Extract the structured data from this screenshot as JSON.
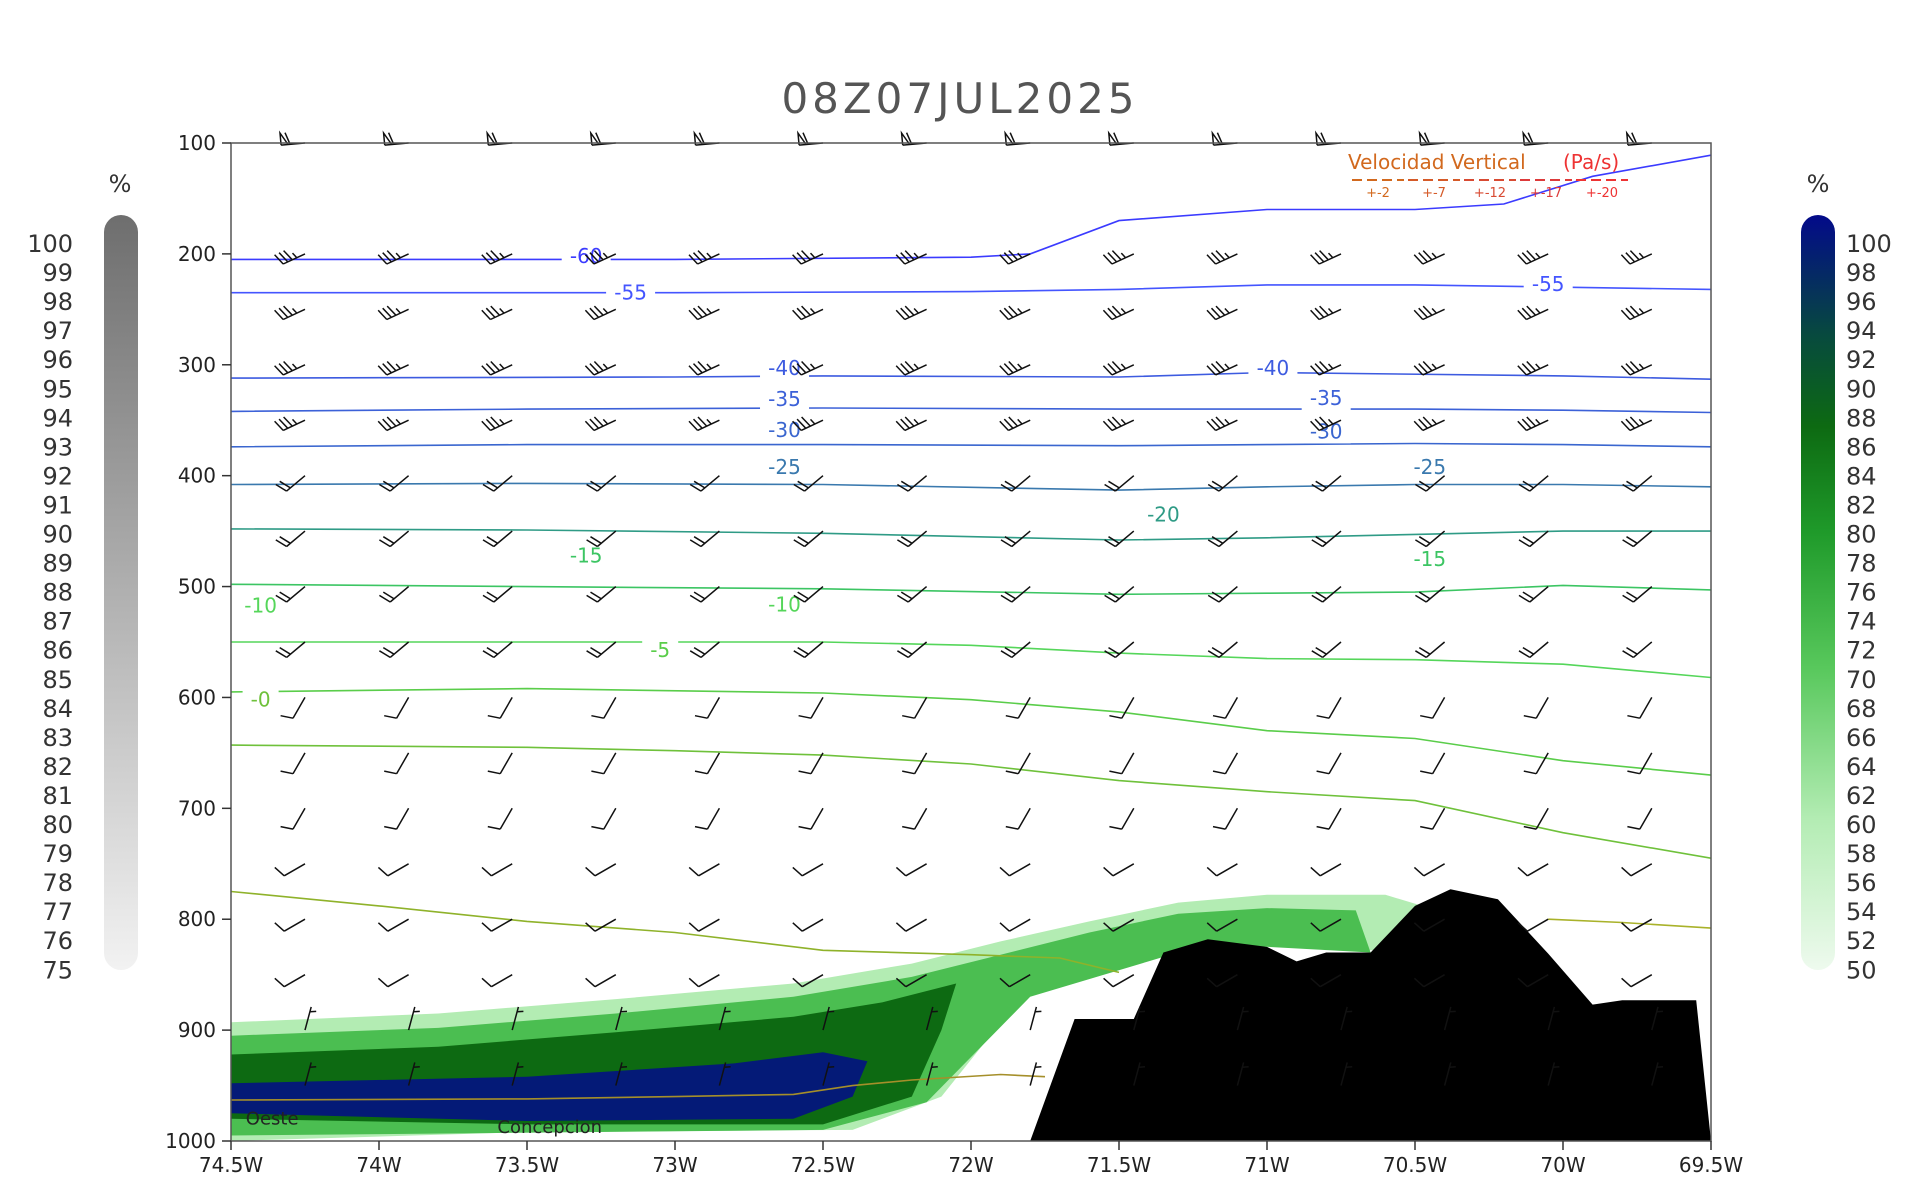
{
  "chart_data": {
    "type": "line",
    "title": "08Z07JUL2025",
    "y_axis": {
      "range": [
        1000,
        100
      ],
      "ticks": [
        100,
        200,
        300,
        400,
        500,
        600,
        700,
        800,
        900,
        1000
      ]
    },
    "x_axis": {
      "range": [
        -74.5,
        -69.5
      ],
      "ticks": [
        {
          "v": -74.5,
          "l": "74.5W"
        },
        {
          "v": -74,
          "l": "74W"
        },
        {
          "v": -73.5,
          "l": "73.5W"
        },
        {
          "v": -73,
          "l": "73W"
        },
        {
          "v": -72.5,
          "l": "72.5W"
        },
        {
          "v": -72,
          "l": "72W"
        },
        {
          "v": -71.5,
          "l": "71.5W"
        },
        {
          "v": -71,
          "l": "71W"
        },
        {
          "v": -70.5,
          "l": "70.5W"
        },
        {
          "v": -70,
          "l": "70W"
        },
        {
          "v": -69.5,
          "l": "69.5W"
        }
      ]
    },
    "temperature_isotherms": [
      {
        "label": "-60",
        "color": "#3b3bff",
        "labels_at": [
          [
            -73.3,
            202
          ]
        ],
        "points": [
          [
            -74.5,
            205
          ],
          [
            -73,
            205
          ],
          [
            -72,
            203
          ],
          [
            -71.8,
            200
          ],
          [
            -71.5,
            170
          ],
          [
            -71,
            160
          ],
          [
            -70.5,
            160
          ],
          [
            -70.2,
            155
          ],
          [
            -69.9,
            130
          ],
          [
            -69.5,
            111
          ]
        ]
      },
      {
        "label": "-55",
        "color": "#4455ff",
        "labels_at": [
          [
            -73.15,
            235
          ],
          [
            -70.05,
            227
          ]
        ],
        "points": [
          [
            -74.5,
            235
          ],
          [
            -73,
            235
          ],
          [
            -72,
            234
          ],
          [
            -71.5,
            232
          ],
          [
            -71,
            228
          ],
          [
            -70.5,
            228
          ],
          [
            -70,
            230
          ],
          [
            -69.5,
            232
          ]
        ]
      },
      {
        "label": "-40",
        "color": "#3d5be0",
        "labels_at": [
          [
            -72.63,
            303
          ],
          [
            -70.98,
            303
          ]
        ],
        "points": [
          [
            -74.5,
            312
          ],
          [
            -73,
            311
          ],
          [
            -72.5,
            310
          ],
          [
            -71.5,
            311
          ],
          [
            -71,
            307
          ],
          [
            -70,
            310
          ],
          [
            -69.5,
            313
          ]
        ]
      },
      {
        "label": "-35",
        "color": "#3c61d8",
        "labels_at": [
          [
            -72.63,
            331
          ],
          [
            -70.8,
            330
          ]
        ],
        "points": [
          [
            -74.5,
            342
          ],
          [
            -73.5,
            340
          ],
          [
            -72.5,
            339
          ],
          [
            -71.5,
            340
          ],
          [
            -71,
            340
          ],
          [
            -70.5,
            340
          ],
          [
            -70,
            341
          ],
          [
            -69.5,
            343
          ]
        ]
      },
      {
        "label": "-30",
        "color": "#3a66cf",
        "labels_at": [
          [
            -72.63,
            359
          ],
          [
            -70.8,
            360
          ]
        ],
        "points": [
          [
            -74.5,
            374
          ],
          [
            -73.5,
            372
          ],
          [
            -72.5,
            372
          ],
          [
            -71.5,
            373
          ],
          [
            -71,
            372
          ],
          [
            -70.5,
            371
          ],
          [
            -70,
            372
          ],
          [
            -69.5,
            374
          ]
        ]
      },
      {
        "label": "-25",
        "color": "#3a79ae",
        "labels_at": [
          [
            -72.63,
            392
          ],
          [
            -70.45,
            392
          ]
        ],
        "points": [
          [
            -74.5,
            408
          ],
          [
            -73.5,
            407
          ],
          [
            -72.5,
            408
          ],
          [
            -71.5,
            413
          ],
          [
            -71,
            410
          ],
          [
            -70.5,
            408
          ],
          [
            -70,
            408
          ],
          [
            -69.5,
            410
          ]
        ]
      },
      {
        "label": "-20",
        "color": "#2f9b86",
        "labels_at": [
          [
            -71.35,
            435
          ]
        ],
        "points": [
          [
            -74.5,
            448
          ],
          [
            -73.5,
            449
          ],
          [
            -72.5,
            452
          ],
          [
            -71.5,
            458
          ],
          [
            -71,
            456
          ],
          [
            -70.5,
            453
          ],
          [
            -70,
            450
          ],
          [
            -69.5,
            450
          ]
        ]
      },
      {
        "label": "-15",
        "color": "#3cc563",
        "labels_at": [
          [
            -73.3,
            472
          ],
          [
            -70.45,
            475
          ]
        ],
        "points": [
          [
            -74.5,
            498
          ],
          [
            -73.5,
            500
          ],
          [
            -72.5,
            502
          ],
          [
            -71.5,
            507
          ],
          [
            -71,
            506
          ],
          [
            -70.5,
            505
          ],
          [
            -70,
            499
          ],
          [
            -69.5,
            503
          ]
        ]
      },
      {
        "label": "-10",
        "color": "#55d65a",
        "labels_at": [
          [
            -74.4,
            517
          ],
          [
            -72.63,
            516
          ]
        ],
        "points": [
          [
            -74.5,
            550
          ],
          [
            -73.5,
            550
          ],
          [
            -72.5,
            550
          ],
          [
            -72,
            553
          ],
          [
            -71.5,
            560
          ],
          [
            -71,
            565
          ],
          [
            -70.5,
            566
          ],
          [
            -70,
            570
          ],
          [
            -69.5,
            582
          ]
        ]
      },
      {
        "label": "-5",
        "color": "#5acd4a",
        "labels_at": [
          [
            -73.05,
            557
          ]
        ],
        "points": [
          [
            -74.5,
            595
          ],
          [
            -73.5,
            592
          ],
          [
            -72.5,
            596
          ],
          [
            -72,
            602
          ],
          [
            -71.5,
            613
          ],
          [
            -71,
            630
          ],
          [
            -70.5,
            637
          ],
          [
            -70,
            657
          ],
          [
            -69.5,
            670
          ]
        ]
      },
      {
        "label": "-0",
        "color": "#6fc13b",
        "labels_at": [
          [
            -74.4,
            602
          ]
        ],
        "points": [
          [
            -74.5,
            643
          ],
          [
            -73.5,
            645
          ],
          [
            -73,
            648
          ],
          [
            -72.5,
            652
          ],
          [
            -72,
            660
          ],
          [
            -71.5,
            675
          ],
          [
            -71,
            685
          ],
          [
            -70.5,
            693
          ],
          [
            -70,
            722
          ],
          [
            -69.5,
            745
          ]
        ]
      },
      {
        "label": "",
        "color": "#8fb22a",
        "points": [
          [
            -74.5,
            775
          ],
          [
            -74,
            788
          ],
          [
            -73.5,
            802
          ],
          [
            -73,
            812
          ],
          [
            -72.5,
            828
          ],
          [
            -72,
            832
          ],
          [
            -71.7,
            835
          ],
          [
            -71.5,
            848
          ]
        ]
      },
      {
        "label": "",
        "color": "#a9b22a",
        "points": [
          [
            -70.05,
            800
          ],
          [
            -69.8,
            803
          ],
          [
            -69.5,
            808
          ]
        ]
      },
      {
        "label": "",
        "color": "#a58f2a",
        "points": [
          [
            -74.5,
            963
          ],
          [
            -73.5,
            962
          ],
          [
            -73,
            960
          ],
          [
            -72.6,
            958
          ],
          [
            -72.4,
            950
          ],
          [
            -72.2,
            945
          ],
          [
            -71.9,
            940
          ],
          [
            -71.75,
            942
          ]
        ]
      }
    ],
    "terrain": {
      "color": "#000000",
      "points": [
        [
          -71.8,
          1000
        ],
        [
          -71.65,
          890
        ],
        [
          -71.45,
          890
        ],
        [
          -71.35,
          830
        ],
        [
          -71.2,
          818
        ],
        [
          -71,
          825
        ],
        [
          -70.9,
          838
        ],
        [
          -70.8,
          830
        ],
        [
          -70.65,
          830
        ],
        [
          -70.5,
          788
        ],
        [
          -70.38,
          773
        ],
        [
          -70.22,
          782
        ],
        [
          -70.05,
          831
        ],
        [
          -69.9,
          877
        ],
        [
          -69.8,
          873
        ],
        [
          -69.55,
          873
        ],
        [
          -69.5,
          1000
        ]
      ]
    },
    "relative_humidity": {
      "unit": "%",
      "range": [
        50,
        100
      ],
      "colorbar_ticks": [
        100,
        98,
        96,
        94,
        92,
        90,
        88,
        86,
        84,
        82,
        80,
        78,
        76,
        74,
        72,
        70,
        68,
        66,
        64,
        62,
        60,
        58,
        56,
        54,
        52,
        50
      ],
      "bands": [
        {
          "value": 60,
          "points": [
            [
              -74.5,
              893
            ],
            [
              -73.8,
              885
            ],
            [
              -73.2,
              872
            ],
            [
              -72.6,
              858
            ],
            [
              -72.2,
              840
            ],
            [
              -71.9,
              820
            ],
            [
              -71.6,
              802
            ],
            [
              -71.3,
              785
            ],
            [
              -71,
              778
            ],
            [
              -70.6,
              778
            ],
            [
              -70.45,
              790
            ],
            [
              -70.5,
              830
            ],
            [
              -71.2,
              820
            ],
            [
              -71.8,
              860
            ],
            [
              -72.1,
              960
            ],
            [
              -72.4,
              990
            ],
            [
              -73.5,
              992
            ],
            [
              -74.5,
              1000
            ]
          ]
        },
        {
          "value": 72,
          "points": [
            [
              -74.5,
              905
            ],
            [
              -73.8,
              898
            ],
            [
              -73.2,
              885
            ],
            [
              -72.6,
              870
            ],
            [
              -72.2,
              852
            ],
            [
              -71.9,
              832
            ],
            [
              -71.6,
              812
            ],
            [
              -71.3,
              795
            ],
            [
              -71,
              790
            ],
            [
              -70.7,
              792
            ],
            [
              -70.65,
              830
            ],
            [
              -71.2,
              822
            ],
            [
              -71.8,
              870
            ],
            [
              -72.15,
              965
            ],
            [
              -72.5,
              990
            ],
            [
              -74.5,
              995
            ]
          ]
        },
        {
          "value": 86,
          "points": [
            [
              -74.5,
              922
            ],
            [
              -73.8,
              915
            ],
            [
              -73.2,
              902
            ],
            [
              -72.6,
              888
            ],
            [
              -72.3,
              875
            ],
            [
              -72.05,
              858
            ],
            [
              -72.1,
              900
            ],
            [
              -72.2,
              960
            ],
            [
              -72.5,
              985
            ],
            [
              -73.5,
              985
            ],
            [
              -74.5,
              980
            ]
          ]
        },
        {
          "value": 98,
          "points": [
            [
              -74.5,
              948
            ],
            [
              -73.5,
              942
            ],
            [
              -72.8,
              930
            ],
            [
              -72.5,
              920
            ],
            [
              -72.35,
              928
            ],
            [
              -72.4,
              960
            ],
            [
              -72.6,
              980
            ],
            [
              -73.5,
              982
            ],
            [
              -74.5,
              975
            ]
          ]
        }
      ]
    },
    "cloud_fraction": {
      "unit": "%",
      "colorbar_ticks": [
        100,
        99,
        98,
        97,
        96,
        95,
        94,
        93,
        92,
        91,
        90,
        89,
        88,
        87,
        86,
        85,
        84,
        83,
        82,
        81,
        80,
        79,
        78,
        77,
        76,
        75
      ]
    },
    "wind_barbs": {
      "lons": [
        -74.25,
        -73.9,
        -73.55,
        -73.2,
        -72.85,
        -72.5,
        -72.15,
        -71.8,
        -71.45,
        -71.1,
        -70.75,
        -70.4,
        -70.05,
        -69.7
      ],
      "levels": [
        100,
        200,
        250,
        300,
        350,
        400,
        450,
        500,
        550,
        600,
        650,
        700,
        750,
        800,
        850,
        900,
        950
      ],
      "groups": [
        {
          "levels": [
            100
          ],
          "from_deg": 265,
          "speed_kt": 60
        },
        {
          "levels": [
            200,
            250,
            300,
            350
          ],
          "from_deg": 245,
          "speed_kt": 35
        },
        {
          "levels": [
            400,
            450,
            500,
            550
          ],
          "from_deg": 230,
          "speed_kt": 20
        },
        {
          "levels": [
            600,
            650,
            700
          ],
          "from_deg": 210,
          "speed_kt": 10
        },
        {
          "levels": [
            750,
            800,
            850
          ],
          "from_deg": 240,
          "speed_kt": 10
        },
        {
          "levels": [
            900,
            950
          ],
          "from_deg": 15,
          "speed_kt": 5
        }
      ]
    },
    "legend": {
      "title_parts": [
        "Velocidad Vertical",
        "(Pa/s)"
      ],
      "labels": [
        "+-2",
        "+-7",
        "+-12",
        "+-17",
        "+-20"
      ],
      "colors": [
        "#d2691e",
        "#d55a28",
        "#d84a32",
        "#dd3a3a",
        "#ee3333"
      ],
      "position": "top-right"
    },
    "site_labels": [
      {
        "text": "Oeste",
        "lon": -74.45,
        "p": 985
      },
      {
        "text": "Concepcion",
        "lon": -73.6,
        "p": 993
      }
    ]
  }
}
